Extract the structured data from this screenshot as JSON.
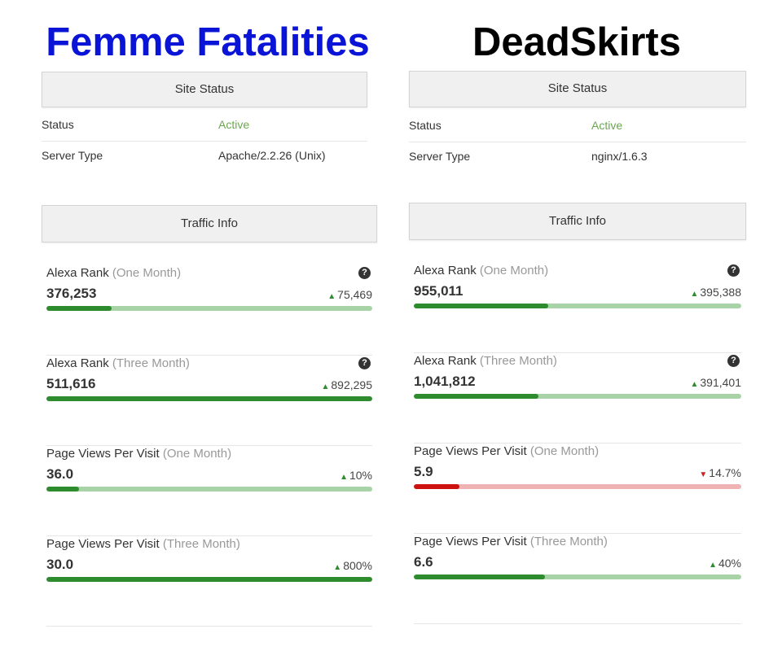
{
  "sites": [
    {
      "name": "Femme Fatalities",
      "title_color": "#0a14d6",
      "site_status": {
        "header": "Site Status",
        "rows": [
          {
            "label": "Status",
            "value": "Active",
            "value_color": "#6aa84f"
          },
          {
            "label": "Server Type",
            "value": "Apache/2.2.26 (Unix)"
          }
        ]
      },
      "traffic_info": {
        "header": "Traffic Info",
        "metrics": [
          {
            "label": "Alexa Rank",
            "period": "(One Month)",
            "value": "376,253",
            "change": "75,469",
            "direction": "up",
            "bar_level": 0.2,
            "bar_color": "green",
            "help": true
          },
          {
            "label": "Alexa Rank",
            "period": "(Three Month)",
            "value": "511,616",
            "change": "892,295",
            "direction": "up",
            "bar_level": 1.0,
            "bar_color": "green",
            "help": true
          },
          {
            "label": "Page Views Per Visit",
            "period": "(One Month)",
            "value": "36.0",
            "change": "10%",
            "direction": "up",
            "bar_level": 0.1,
            "bar_color": "green",
            "help": false
          },
          {
            "label": "Page Views Per Visit",
            "period": "(Three Month)",
            "value": "30.0",
            "change": "800%",
            "direction": "up",
            "bar_level": 1.0,
            "bar_color": "green",
            "help": false
          }
        ]
      }
    },
    {
      "name": "DeadSkirts",
      "title_color": "#000000",
      "site_status": {
        "header": "Site Status",
        "rows": [
          {
            "label": "Status",
            "value": "Active",
            "value_color": "#6aa84f"
          },
          {
            "label": "Server Type",
            "value": "nginx/1.6.3"
          }
        ]
      },
      "traffic_info": {
        "header": "Traffic Info",
        "metrics": [
          {
            "label": "Alexa Rank",
            "period": "(One Month)",
            "value": "955,011",
            "change": "395,388",
            "direction": "up",
            "bar_level": 0.41,
            "bar_color": "green",
            "help": true
          },
          {
            "label": "Alexa Rank",
            "period": "(Three Month)",
            "value": "1,041,812",
            "change": "391,401",
            "direction": "up",
            "bar_level": 0.38,
            "bar_color": "green",
            "help": true
          },
          {
            "label": "Page Views Per Visit",
            "period": "(One Month)",
            "value": "5.9",
            "change": "14.7%",
            "direction": "down",
            "bar_level": 0.14,
            "bar_color": "red",
            "help": false
          },
          {
            "label": "Page Views Per Visit",
            "period": "(Three Month)",
            "value": "6.6",
            "change": "40%",
            "direction": "up",
            "bar_level": 0.4,
            "bar_color": "green",
            "help": false
          }
        ]
      }
    }
  ],
  "icons": {
    "help": "question-circle-icon",
    "up": "triangle-up-icon",
    "down": "triangle-down-icon"
  }
}
